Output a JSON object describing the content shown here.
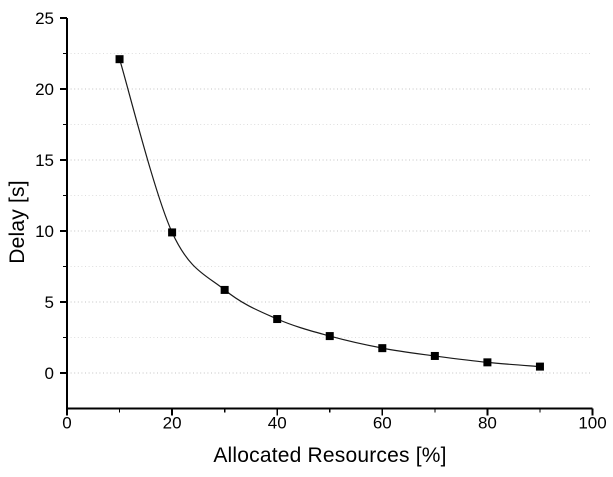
{
  "chart_data": {
    "type": "line",
    "title": "",
    "xlabel": "Allocated Resources [%]",
    "ylabel": "Delay [s]",
    "x": [
      10,
      20,
      30,
      40,
      50,
      60,
      70,
      80,
      90
    ],
    "y": [
      22.1,
      9.9,
      5.85,
      3.8,
      2.6,
      1.75,
      1.2,
      0.75,
      0.45
    ],
    "xlim": [
      0,
      100
    ],
    "ylim": [
      -2.5,
      25
    ],
    "x_major_ticks": [
      0,
      20,
      40,
      60,
      80,
      100
    ],
    "x_tick_labels": [
      "0",
      "20",
      "40",
      "60",
      "80",
      "100"
    ],
    "x_minor_ticks": [
      10,
      30,
      50,
      70,
      90
    ],
    "y_major_ticks": [
      0,
      5,
      10,
      15,
      20,
      25
    ],
    "y_tick_labels": [
      "0",
      "5",
      "10",
      "15",
      "20",
      "25"
    ],
    "y_minor_ticks": [
      2.5,
      7.5,
      12.5,
      17.5,
      22.5
    ],
    "grid": "horizontal-dotted",
    "grid_major_lines_y": [
      0,
      5,
      10,
      15,
      20
    ],
    "grid_minor_lines_y": [
      2.5,
      7.5,
      12.5,
      17.5,
      22.5
    ],
    "legend": "none",
    "marker": "filled-square",
    "line_color": "#1a1a1a",
    "marker_color": "#000000",
    "axis_color": "#000000",
    "text_color": "#000000",
    "grid_major_color": "#c3c3c3",
    "grid_minor_color": "#dedede",
    "background_color": "#ffffff"
  }
}
